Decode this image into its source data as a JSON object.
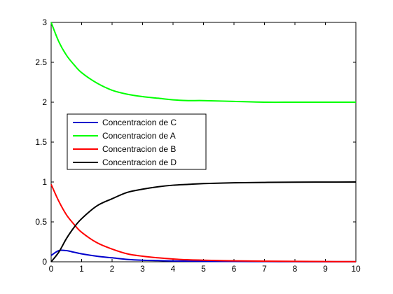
{
  "chart_data": {
    "type": "line",
    "xlim": [
      0,
      10
    ],
    "ylim": [
      0,
      3
    ],
    "xticks": [
      0,
      1,
      2,
      3,
      4,
      5,
      6,
      7,
      8,
      9,
      10
    ],
    "yticks": [
      0,
      0.5,
      1,
      1.5,
      2,
      2.5,
      3
    ],
    "xtick_labels": [
      "0",
      "1",
      "2",
      "3",
      "4",
      "5",
      "6",
      "7",
      "8",
      "9",
      "10"
    ],
    "ytick_labels": [
      "0",
      "0.5",
      "1",
      "1.5",
      "2",
      "2.5",
      "3"
    ],
    "grid": false,
    "legend_position": "middle-left",
    "x": [
      0,
      0.25,
      0.5,
      0.75,
      1,
      1.5,
      2,
      2.5,
      3,
      3.5,
      4,
      4.5,
      5,
      6,
      7,
      8,
      9,
      10
    ],
    "series": [
      {
        "name": "Concentracion de C",
        "color": "#0000cc",
        "values": [
          0.08,
          0.14,
          0.14,
          0.12,
          0.1,
          0.07,
          0.05,
          0.03,
          0.02,
          0.015,
          0.01,
          0.008,
          0.006,
          0.004,
          0.003,
          0.002,
          0.001,
          0.001
        ]
      },
      {
        "name": "Concentracion de A",
        "color": "#00ff00",
        "values": [
          3.0,
          2.76,
          2.59,
          2.47,
          2.37,
          2.24,
          2.15,
          2.1,
          2.07,
          2.05,
          2.03,
          2.02,
          2.02,
          2.01,
          2.0,
          2.0,
          2.0,
          2.0
        ]
      },
      {
        "name": "Concentracion de B",
        "color": "#ff0000",
        "values": [
          0.97,
          0.76,
          0.59,
          0.47,
          0.37,
          0.24,
          0.16,
          0.1,
          0.07,
          0.05,
          0.035,
          0.025,
          0.02,
          0.012,
          0.008,
          0.005,
          0.003,
          0.002
        ]
      },
      {
        "name": "Concentracion de D",
        "color": "#000000",
        "values": [
          0.0,
          0.12,
          0.29,
          0.43,
          0.54,
          0.7,
          0.79,
          0.87,
          0.91,
          0.94,
          0.96,
          0.97,
          0.98,
          0.99,
          0.995,
          0.998,
          0.999,
          1.0
        ]
      }
    ]
  }
}
